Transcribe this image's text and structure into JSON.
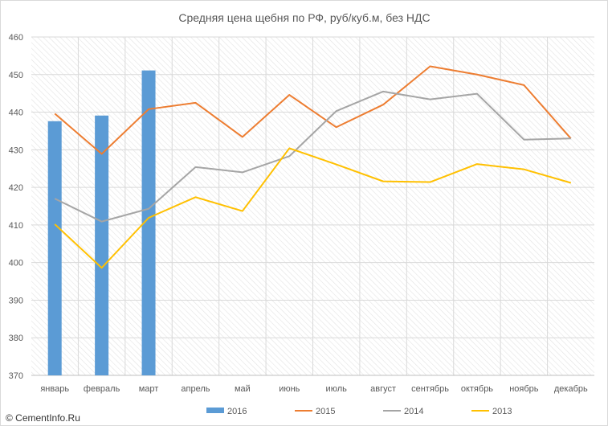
{
  "chart_data": {
    "type": "bar",
    "title": "Средняя цена щебня по РФ, руб/куб.м, без НДС",
    "xlabel": "",
    "ylabel": "",
    "categories": [
      "январь",
      "февраль",
      "март",
      "апрель",
      "май",
      "июнь",
      "июль",
      "август",
      "сентябрь",
      "октябрь",
      "ноябрь",
      "декабрь"
    ],
    "ylim": [
      370,
      460
    ],
    "yticks": [
      370,
      380,
      390,
      400,
      410,
      420,
      430,
      440,
      450,
      460
    ],
    "grid": true,
    "legend_position": "bottom",
    "series": [
      {
        "name": "2016",
        "type": "bar",
        "color": "#5b9bd5",
        "values": [
          437.6,
          439.1,
          451.1,
          null,
          null,
          null,
          null,
          null,
          null,
          null,
          null,
          null
        ]
      },
      {
        "name": "2015",
        "type": "line",
        "color": "#ed7d31",
        "values": [
          439.6,
          428.9,
          440.8,
          442.5,
          433.4,
          444.6,
          436.0,
          442.0,
          452.2,
          450.0,
          447.2,
          433.0
        ]
      },
      {
        "name": "2014",
        "type": "line",
        "color": "#a5a5a5",
        "values": [
          417.0,
          410.9,
          414.3,
          425.4,
          424.0,
          428.3,
          440.3,
          445.5,
          443.4,
          444.9,
          432.7,
          433.0
        ]
      },
      {
        "name": "2013",
        "type": "line",
        "color": "#ffc000",
        "values": [
          410.2,
          398.6,
          411.9,
          417.4,
          413.7,
          430.4,
          426.1,
          421.6,
          421.4,
          426.2,
          424.8,
          421.2
        ]
      }
    ]
  },
  "watermark": "© CementInfo.Ru"
}
